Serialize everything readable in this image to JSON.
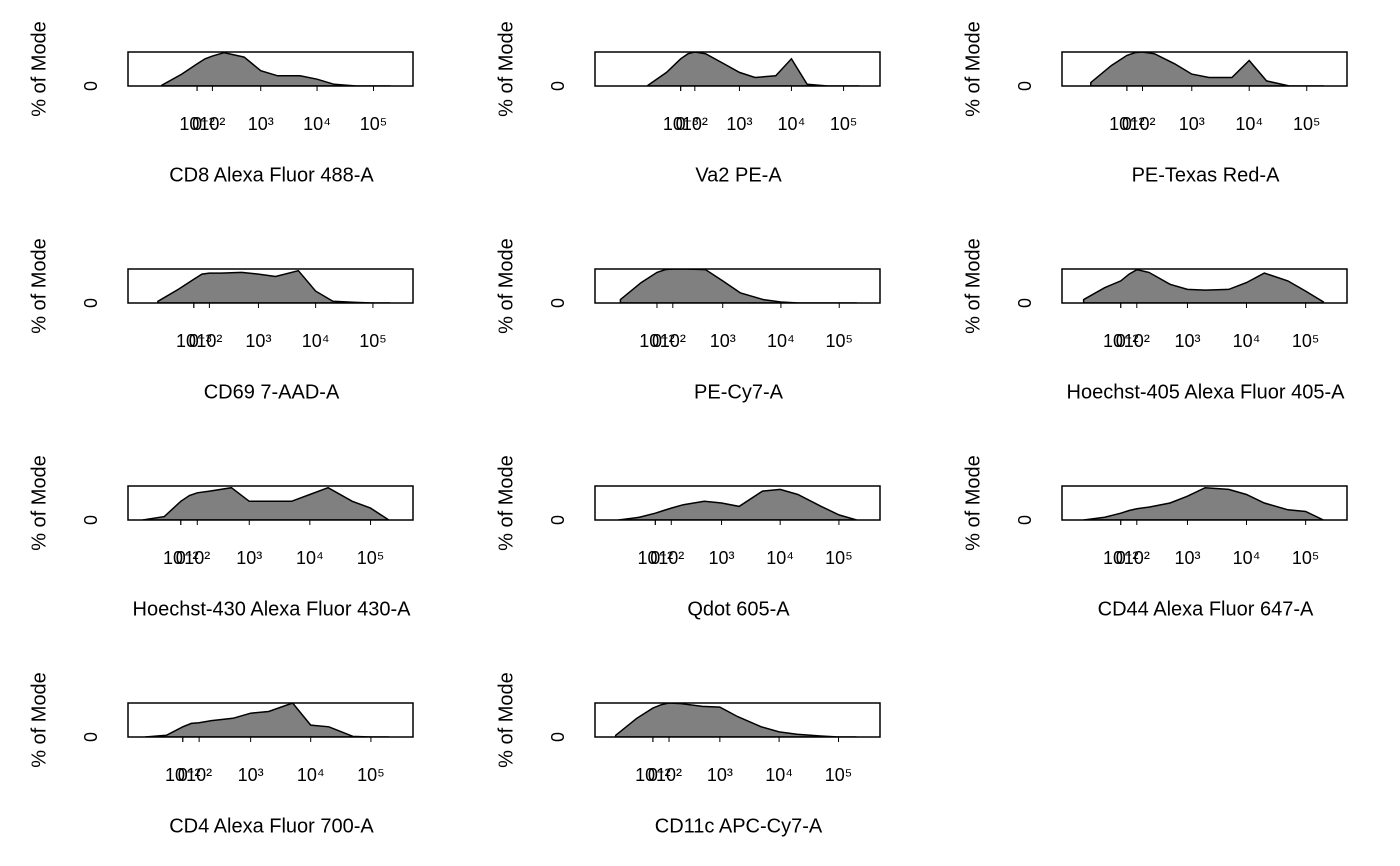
{
  "chart_data": [
    {
      "type": "area",
      "xlabel": "CD8 Alexa Fluor 488-A",
      "ylabel": "% of Mode",
      "xscale": "asinh",
      "xcofactor": 150,
      "xlim": [
        -1250,
        500000
      ],
      "ylim": [
        0,
        100
      ],
      "yticks": [
        0
      ],
      "color": "#808080",
      "xticks": [
        {
          "value": 0.01,
          "label": "10⁻²"
        },
        0,
        {
          "value": 100,
          "label": "10²"
        },
        {
          "value": 1000,
          "label": "10³"
        },
        {
          "value": 10000,
          "label": "10⁴"
        },
        {
          "value": 100000,
          "label": "10⁵"
        }
      ],
      "x": [
        -300,
        -100,
        0,
        50,
        100,
        200,
        500,
        1000,
        2000,
        5000,
        10000,
        20000,
        50000,
        100000,
        200000
      ],
      "values": [
        2,
        35,
        65,
        80,
        88,
        98,
        85,
        45,
        30,
        30,
        20,
        5,
        0,
        0,
        0
      ]
    },
    {
      "type": "area",
      "xlabel": "Va2 PE-A",
      "ylabel": "% of Mode",
      "xscale": "asinh",
      "xcofactor": 150,
      "xlim": [
        -3300,
        500000
      ],
      "ylim": [
        0,
        100
      ],
      "yticks": [
        0
      ],
      "color": "#808080",
      "xticks": [
        {
          "value": 0.001,
          "label": "10⁻³"
        },
        0,
        {
          "value": 100,
          "label": "10²"
        },
        {
          "value": 1000,
          "label": "10³"
        },
        {
          "value": 10000,
          "label": "10⁴"
        },
        {
          "value": 100000,
          "label": "10⁵"
        }
      ],
      "x": [
        -300,
        -100,
        0,
        50,
        100,
        200,
        500,
        1000,
        2000,
        5000,
        10000,
        20000,
        50000,
        100000,
        200000
      ],
      "values": [
        2,
        40,
        80,
        95,
        100,
        95,
        65,
        40,
        25,
        30,
        80,
        5,
        0,
        0,
        0
      ]
    },
    {
      "type": "area",
      "xlabel": "PE-Texas Red-A",
      "ylabel": "% of Mode",
      "xscale": "asinh",
      "xcofactor": 150,
      "xlim": [
        -1000,
        500000
      ],
      "ylim": [
        0,
        100
      ],
      "yticks": [
        0
      ],
      "color": "#808080",
      "xticks": [
        {
          "value": 0.01,
          "label": "10⁻²"
        },
        0,
        {
          "value": 100,
          "label": "10²"
        },
        {
          "value": 1000,
          "label": "10³"
        },
        {
          "value": 10000,
          "label": "10⁴"
        },
        {
          "value": 100000,
          "label": "10⁵"
        }
      ],
      "x": [
        -300,
        -100,
        0,
        50,
        100,
        200,
        500,
        1000,
        2000,
        5000,
        10000,
        20000,
        50000,
        100000,
        200000
      ],
      "values": [
        10,
        60,
        90,
        98,
        100,
        95,
        65,
        35,
        25,
        25,
        75,
        15,
        0,
        0,
        0
      ]
    },
    {
      "type": "area",
      "xlabel": "CD69 7-AAD-A",
      "ylabel": "% of Mode",
      "xscale": "asinh",
      "xcofactor": 150,
      "xlim": [
        -1050,
        500000
      ],
      "ylim": [
        0,
        100
      ],
      "yticks": [
        0
      ],
      "color": "#808080",
      "xticks": [
        {
          "value": 0.001,
          "label": "10⁻³"
        },
        0,
        {
          "value": 100,
          "label": "10²"
        },
        {
          "value": 1000,
          "label": "10³"
        },
        {
          "value": 10000,
          "label": "10⁴"
        },
        {
          "value": 100000,
          "label": "10⁵"
        }
      ],
      "x": [
        -300,
        -100,
        0,
        50,
        100,
        200,
        500,
        1000,
        2000,
        5000,
        10000,
        20000,
        50000,
        100000,
        200000
      ],
      "values": [
        5,
        40,
        70,
        85,
        88,
        88,
        90,
        85,
        78,
        95,
        35,
        5,
        2,
        0,
        0
      ]
    },
    {
      "type": "area",
      "xlabel": "PE-Cy7-A",
      "ylabel": "% of Mode",
      "xscale": "asinh",
      "xcofactor": 150,
      "xlim": [
        -860,
        500000
      ],
      "ylim": [
        0,
        100
      ],
      "yticks": [
        0
      ],
      "color": "#808080",
      "xticks": [
        {
          "value": 0.01,
          "label": "10⁻²"
        },
        0,
        {
          "value": 100,
          "label": "10²"
        },
        {
          "value": 1000,
          "label": "10³"
        },
        {
          "value": 10000,
          "label": "10⁴"
        },
        {
          "value": 100000,
          "label": "10⁵"
        }
      ],
      "x": [
        -300,
        -100,
        0,
        50,
        100,
        200,
        500,
        1000,
        2000,
        5000,
        10000,
        20000,
        50000,
        100000,
        200000
      ],
      "values": [
        10,
        60,
        90,
        98,
        100,
        100,
        98,
        65,
        30,
        10,
        3,
        0,
        0,
        0,
        0
      ]
    },
    {
      "type": "area",
      "xlabel": "Hoechst-405 Alexa Fluor 405-A",
      "ylabel": "% of Mode",
      "xscale": "asinh",
      "xcofactor": 150,
      "xlim": [
        -730,
        500000
      ],
      "ylim": [
        0,
        100
      ],
      "yticks": [
        0
      ],
      "color": "#808080",
      "xticks": [
        {
          "value": 0.01,
          "label": "10⁻²"
        },
        0,
        {
          "value": 100,
          "label": "10²"
        },
        {
          "value": 1000,
          "label": "10³"
        },
        {
          "value": 10000,
          "label": "10⁴"
        },
        {
          "value": 100000,
          "label": "10⁵"
        }
      ],
      "x": [
        -300,
        -100,
        0,
        50,
        100,
        200,
        500,
        1000,
        2000,
        5000,
        10000,
        20000,
        50000,
        100000,
        200000
      ],
      "values": [
        10,
        45,
        65,
        85,
        98,
        90,
        55,
        40,
        38,
        40,
        60,
        88,
        65,
        35,
        3
      ]
    },
    {
      "type": "area",
      "xlabel": "Hoechst-430 Alexa Fluor 430-A",
      "ylabel": "% of Mode",
      "xscale": "asinh",
      "xcofactor": 150,
      "xlim": [
        -545,
        500000
      ],
      "ylim": [
        0,
        100
      ],
      "yticks": [
        0
      ],
      "color": "#808080",
      "xticks": [
        {
          "value": 0.01,
          "label": "10⁻²"
        },
        0,
        {
          "value": 100,
          "label": "10²"
        },
        {
          "value": 1000,
          "label": "10³"
        },
        {
          "value": 10000,
          "label": "10⁴"
        },
        {
          "value": 100000,
          "label": "10⁵"
        }
      ],
      "x": [
        -300,
        -100,
        0,
        50,
        100,
        200,
        500,
        1000,
        2000,
        5000,
        10000,
        20000,
        50000,
        100000,
        200000
      ],
      "values": [
        0,
        10,
        55,
        72,
        80,
        85,
        95,
        55,
        55,
        55,
        75,
        95,
        55,
        35,
        0
      ]
    },
    {
      "type": "area",
      "xlabel": "Qdot 605-A",
      "ylabel": "% of Mode",
      "xscale": "asinh",
      "xcofactor": 150,
      "xlim": [
        -790,
        500000
      ],
      "ylim": [
        0,
        100
      ],
      "yticks": [
        0
      ],
      "color": "#808080",
      "xticks": [
        {
          "value": 0.01,
          "label": "10⁻²"
        },
        0,
        {
          "value": 100,
          "label": "10²"
        },
        {
          "value": 1000,
          "label": "10³"
        },
        {
          "value": 10000,
          "label": "10⁴"
        },
        {
          "value": 100000,
          "label": "10⁵"
        }
      ],
      "x": [
        -300,
        -100,
        0,
        50,
        100,
        200,
        500,
        1000,
        2000,
        5000,
        10000,
        20000,
        50000,
        100000,
        200000
      ],
      "values": [
        0,
        8,
        20,
        28,
        35,
        45,
        55,
        50,
        40,
        85,
        90,
        75,
        40,
        15,
        0
      ]
    },
    {
      "type": "area",
      "xlabel": "CD44 Alexa Fluor 647-A",
      "ylabel": "% of Mode",
      "xscale": "asinh",
      "xcofactor": 150,
      "xlim": [
        -730,
        500000
      ],
      "ylim": [
        0,
        100
      ],
      "yticks": [
        0
      ],
      "color": "#808080",
      "xticks": [
        {
          "value": 0.01,
          "label": "10⁻²"
        },
        0,
        {
          "value": 100,
          "label": "10²"
        },
        {
          "value": 1000,
          "label": "10³"
        },
        {
          "value": 10000,
          "label": "10⁴"
        },
        {
          "value": 100000,
          "label": "10⁵"
        }
      ],
      "x": [
        -300,
        -100,
        0,
        50,
        100,
        200,
        500,
        1000,
        2000,
        5000,
        10000,
        20000,
        50000,
        100000,
        200000
      ],
      "values": [
        0,
        8,
        20,
        28,
        33,
        38,
        50,
        70,
        95,
        90,
        75,
        50,
        30,
        25,
        0
      ]
    },
    {
      "type": "area",
      "xlabel": "CD4 Alexa Fluor 700-A",
      "ylabel": "% of Mode",
      "xscale": "asinh",
      "xcofactor": 150,
      "xlim": [
        -600,
        500000
      ],
      "ylim": [
        0,
        100
      ],
      "yticks": [
        0
      ],
      "color": "#808080",
      "xticks": [
        {
          "value": 0.01,
          "label": "10⁻²"
        },
        0,
        {
          "value": 100,
          "label": "10²"
        },
        {
          "value": 1000,
          "label": "10³"
        },
        {
          "value": 10000,
          "label": "10⁴"
        },
        {
          "value": 100000,
          "label": "10⁵"
        }
      ],
      "x": [
        -300,
        -100,
        0,
        50,
        100,
        200,
        500,
        1000,
        2000,
        5000,
        10000,
        20000,
        50000,
        100000,
        200000
      ],
      "values": [
        0,
        5,
        30,
        40,
        42,
        48,
        55,
        70,
        75,
        100,
        35,
        30,
        2,
        0,
        0
      ]
    },
    {
      "type": "area",
      "xlabel": "CD11c APC-Cy7-A",
      "ylabel": "% of Mode",
      "xscale": "asinh",
      "xcofactor": 150,
      "xlim": [
        -700,
        500000
      ],
      "ylim": [
        0,
        100
      ],
      "yticks": [
        0
      ],
      "color": "#808080",
      "xticks": [
        {
          "value": 0.01,
          "label": "10⁻²"
        },
        0,
        {
          "value": 100,
          "label": "10²"
        },
        {
          "value": 1000,
          "label": "10³"
        },
        {
          "value": 10000,
          "label": "10⁴"
        },
        {
          "value": 100000,
          "label": "10⁵"
        }
      ],
      "x": [
        -300,
        -100,
        0,
        50,
        100,
        200,
        500,
        1000,
        2000,
        5000,
        10000,
        20000,
        50000,
        100000,
        200000
      ],
      "values": [
        5,
        55,
        85,
        95,
        100,
        98,
        90,
        88,
        60,
        30,
        15,
        8,
        3,
        0,
        0
      ]
    }
  ]
}
